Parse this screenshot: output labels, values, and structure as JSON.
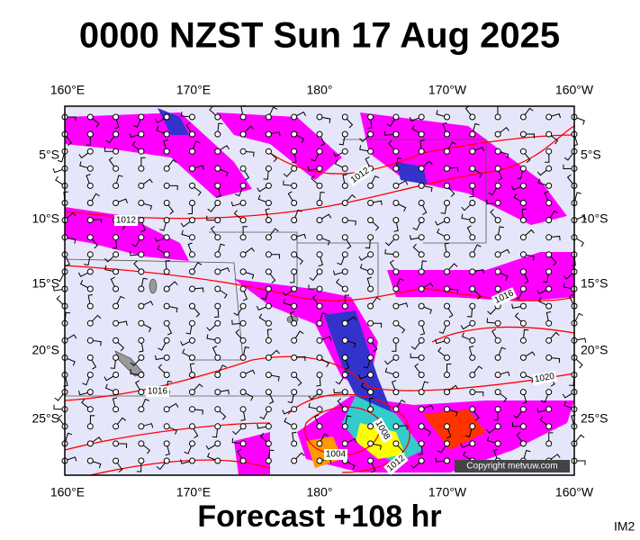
{
  "header": {
    "title": "0000 NZST Sun 17 Aug 2025"
  },
  "axes": {
    "longitudes": [
      "160°E",
      "170°E",
      "180°",
      "170°W",
      "160°W"
    ],
    "latitudes": [
      "5°S",
      "10°S",
      "15°S",
      "20°S",
      "25°S"
    ]
  },
  "contour_labels": [
    "1012",
    "1012",
    "1016",
    "1016",
    "1020",
    "1008",
    "1004",
    "1012"
  ],
  "copyright": "Copyright metvuw.com",
  "footer": {
    "forecast": "Forecast +108 hr",
    "image_id": "IM2"
  }
}
